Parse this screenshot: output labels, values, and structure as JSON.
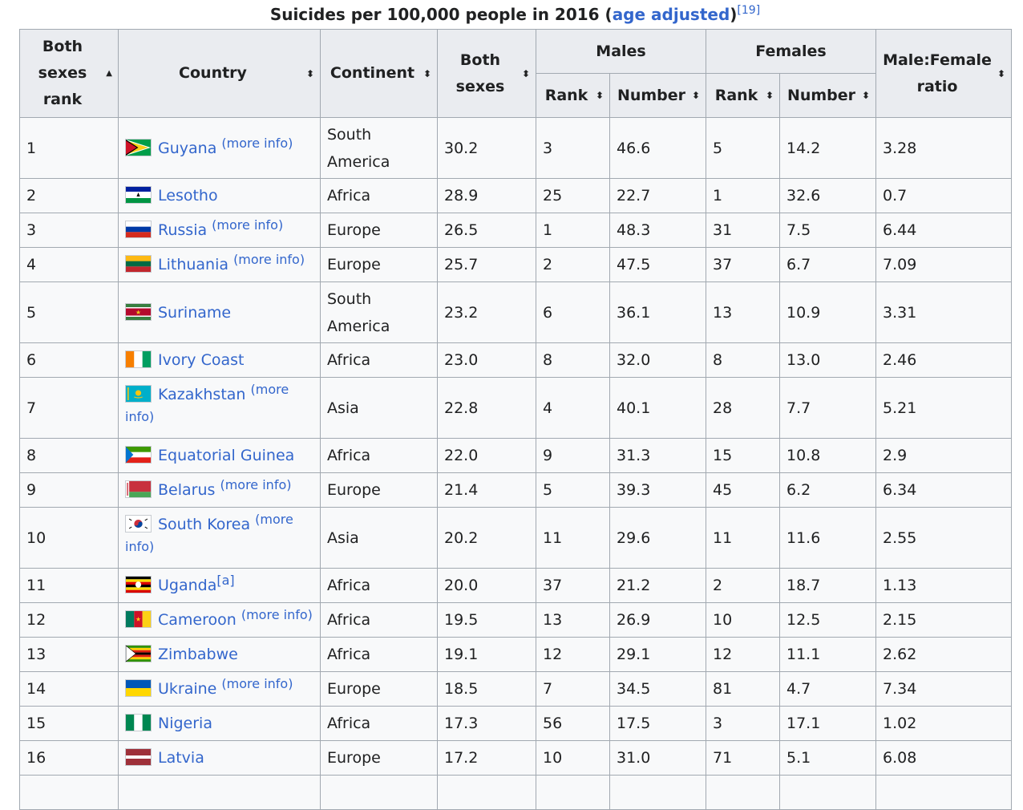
{
  "caption": {
    "text": "Suicides per 100,000 people in 2016 (",
    "link": "age adjusted",
    "close": ")",
    "ref": "[19]"
  },
  "headers": {
    "rank": "Both sexes rank",
    "country": "Country",
    "continent": "Continent",
    "both": "Both sexes",
    "males": "Males",
    "females": "Females",
    "ratio": "Male:Female ratio",
    "sub_rank": "Rank",
    "sub_number": "Number"
  },
  "more_info": "(more info)",
  "more_info_split": [
    "(more",
    "info)"
  ],
  "rows": [
    {
      "rank": "1",
      "country": "Guyana",
      "note": "(more info)",
      "flag": "guyana-flag-icon",
      "continent": "South America",
      "both": "30.2",
      "m_rank": "3",
      "m_num": "46.6",
      "f_rank": "5",
      "f_num": "14.2",
      "ratio": "3.28"
    },
    {
      "rank": "2",
      "country": "Lesotho",
      "note": "",
      "flag": "lesotho-flag-icon",
      "continent": "Africa",
      "both": "28.9",
      "m_rank": "25",
      "m_num": "22.7",
      "f_rank": "1",
      "f_num": "32.6",
      "ratio": "0.7"
    },
    {
      "rank": "3",
      "country": "Russia",
      "note": "(more info)",
      "flag": "russia-flag-icon",
      "continent": "Europe",
      "both": "26.5",
      "m_rank": "1",
      "m_num": "48.3",
      "f_rank": "31",
      "f_num": "7.5",
      "ratio": "6.44"
    },
    {
      "rank": "4",
      "country": "Lithuania",
      "note": "(more info)",
      "flag": "lithuania-flag-icon",
      "continent": "Europe",
      "both": "25.7",
      "m_rank": "2",
      "m_num": "47.5",
      "f_rank": "37",
      "f_num": "6.7",
      "ratio": "7.09"
    },
    {
      "rank": "5",
      "country": "Suriname",
      "note": "",
      "flag": "suriname-flag-icon",
      "continent": "South America",
      "both": "23.2",
      "m_rank": "6",
      "m_num": "36.1",
      "f_rank": "13",
      "f_num": "10.9",
      "ratio": "3.31"
    },
    {
      "rank": "6",
      "country": "Ivory Coast",
      "note": "",
      "flag": "ivory-coast-flag-icon",
      "continent": "Africa",
      "both": "23.0",
      "m_rank": "8",
      "m_num": "32.0",
      "f_rank": "8",
      "f_num": "13.0",
      "ratio": "2.46"
    },
    {
      "rank": "7",
      "country": "Kazakhstan",
      "note": "(more info)",
      "flag": "kazakhstan-flag-icon",
      "continent": "Asia",
      "both": "22.8",
      "m_rank": "4",
      "m_num": "40.1",
      "f_rank": "28",
      "f_num": "7.7",
      "ratio": "5.21"
    },
    {
      "rank": "8",
      "country": "Equatorial Guinea",
      "note": "",
      "flag": "equatorial-guinea-flag-icon",
      "continent": "Africa",
      "both": "22.0",
      "m_rank": "9",
      "m_num": "31.3",
      "f_rank": "15",
      "f_num": "10.8",
      "ratio": "2.9"
    },
    {
      "rank": "9",
      "country": "Belarus",
      "note": "(more info)",
      "flag": "belarus-flag-icon",
      "continent": "Europe",
      "both": "21.4",
      "m_rank": "5",
      "m_num": "39.3",
      "f_rank": "45",
      "f_num": "6.2",
      "ratio": "6.34"
    },
    {
      "rank": "10",
      "country": "South Korea",
      "note": "(more info)",
      "flag": "south-korea-flag-icon",
      "continent": "Asia",
      "both": "20.2",
      "m_rank": "11",
      "m_num": "29.6",
      "f_rank": "11",
      "f_num": "11.6",
      "ratio": "2.55"
    },
    {
      "rank": "11",
      "country": "Uganda",
      "note": "[a]",
      "flag": "uganda-flag-icon",
      "continent": "Africa",
      "both": "20.0",
      "m_rank": "37",
      "m_num": "21.2",
      "f_rank": "2",
      "f_num": "18.7",
      "ratio": "1.13"
    },
    {
      "rank": "12",
      "country": "Cameroon",
      "note": "(more info)",
      "flag": "cameroon-flag-icon",
      "continent": "Africa",
      "both": "19.5",
      "m_rank": "13",
      "m_num": "26.9",
      "f_rank": "10",
      "f_num": "12.5",
      "ratio": "2.15"
    },
    {
      "rank": "13",
      "country": "Zimbabwe",
      "note": "",
      "flag": "zimbabwe-flag-icon",
      "continent": "Africa",
      "both": "19.1",
      "m_rank": "12",
      "m_num": "29.1",
      "f_rank": "12",
      "f_num": "11.1",
      "ratio": "2.62"
    },
    {
      "rank": "14",
      "country": "Ukraine",
      "note": "(more info)",
      "flag": "ukraine-flag-icon",
      "continent": "Europe",
      "both": "18.5",
      "m_rank": "7",
      "m_num": "34.5",
      "f_rank": "81",
      "f_num": "4.7",
      "ratio": "7.34"
    },
    {
      "rank": "15",
      "country": "Nigeria",
      "note": "",
      "flag": "nigeria-flag-icon",
      "continent": "Africa",
      "both": "17.3",
      "m_rank": "56",
      "m_num": "17.5",
      "f_rank": "3",
      "f_num": "17.1",
      "ratio": "1.02"
    },
    {
      "rank": "16",
      "country": "Latvia",
      "note": "",
      "flag": "latvia-flag-icon",
      "continent": "Europe",
      "both": "17.2",
      "m_rank": "10",
      "m_num": "31.0",
      "f_rank": "71",
      "f_num": "5.1",
      "ratio": "6.08"
    }
  ],
  "colors": {
    "link": "#3366cc",
    "header_bg": "#eaecf0",
    "cell_bg": "#f8f9fa",
    "border": "#a2a9b1"
  }
}
